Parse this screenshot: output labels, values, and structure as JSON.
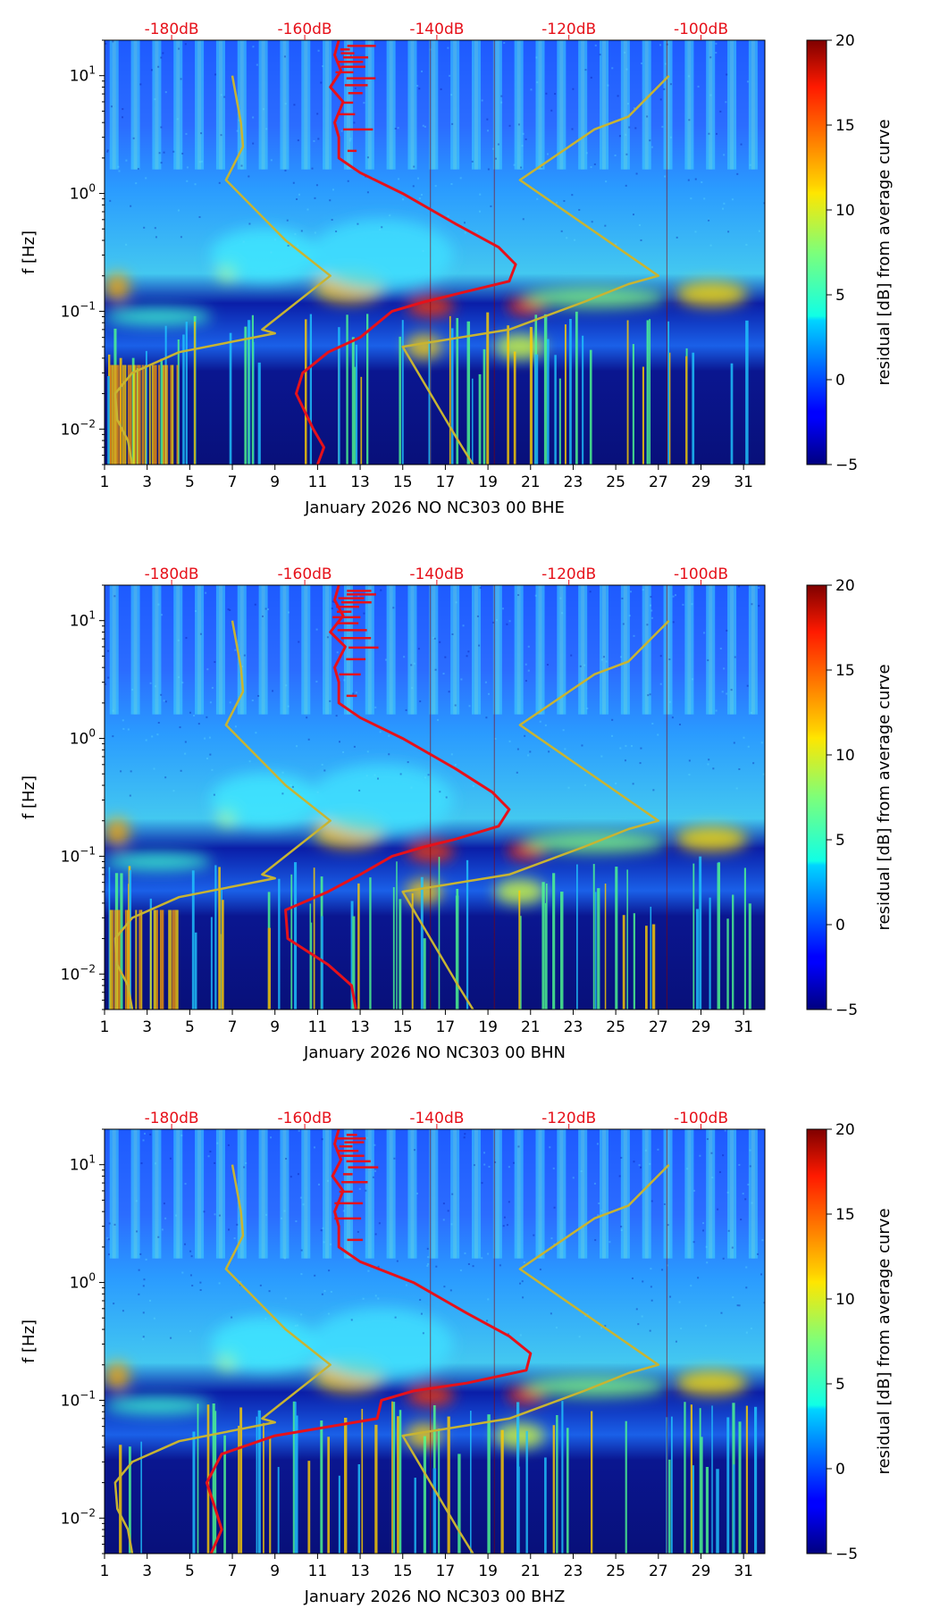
{
  "chart_data": [
    {
      "type": "heatmap",
      "channel": "BHE",
      "xlabel": "January 2026 NO NC303 00 BHE",
      "ylabel": "f [Hz]",
      "x_ticks": [
        "1",
        "3",
        "5",
        "7",
        "9",
        "11",
        "13",
        "15",
        "17",
        "19",
        "21",
        "23",
        "25",
        "27",
        "29",
        "31"
      ],
      "xlim": [
        1,
        32
      ],
      "ylim": [
        0.005,
        20
      ],
      "y_ticks": [
        {
          "base": "10",
          "exp": "1",
          "value": 10
        },
        {
          "base": "10",
          "exp": "0",
          "value": 1
        },
        {
          "base": "10",
          "exp": "−1",
          "value": 0.1
        },
        {
          "base": "10",
          "exp": "−2",
          "value": 0.01
        }
      ],
      "top_axis_labels": [
        "-180dB",
        "-160dB",
        "-140dB",
        "-120dB",
        "-100dB"
      ],
      "colorbar": {
        "label": "residual [dB] from average curve",
        "ticks": [
          "20",
          "15",
          "10",
          "5",
          "0",
          "−5"
        ],
        "min": -5,
        "max": 20
      },
      "series": [
        {
          "name": "model curve 1 (olive)",
          "color": "#c8b432",
          "points": [
            [
              7.0,
              10
            ],
            [
              7.4,
              4
            ],
            [
              7.5,
              2.5
            ],
            [
              6.7,
              1.3
            ],
            [
              9.5,
              0.4
            ],
            [
              11.6,
              0.2
            ],
            [
              8.4,
              0.07
            ],
            [
              9.0,
              0.065
            ],
            [
              4.5,
              0.045
            ],
            [
              2.3,
              0.03
            ],
            [
              1.5,
              0.02
            ],
            [
              1.6,
              0.012
            ],
            [
              2.1,
              0.008
            ],
            [
              2.3,
              0.005
            ]
          ]
        },
        {
          "name": "model curve 2 (olive)",
          "color": "#c8b432",
          "points": [
            [
              27.5,
              10
            ],
            [
              25.6,
              4.5
            ],
            [
              24.0,
              3.5
            ],
            [
              20.5,
              1.3
            ],
            [
              27.0,
              0.2
            ],
            [
              25.6,
              0.17
            ],
            [
              23.5,
              0.12
            ],
            [
              20.0,
              0.07
            ],
            [
              15.0,
              0.05
            ],
            [
              17.6,
              0.008
            ],
            [
              18.3,
              0.005
            ]
          ]
        },
        {
          "name": "average power curve (red)",
          "color": "#e6111a",
          "points": [
            [
              12.0,
              20
            ],
            [
              11.8,
              15
            ],
            [
              12.1,
              11
            ],
            [
              11.6,
              8
            ],
            [
              12.2,
              6
            ],
            [
              11.8,
              4
            ],
            [
              12.0,
              3
            ],
            [
              12.0,
              2
            ],
            [
              13.0,
              1.5
            ],
            [
              15.0,
              1.0
            ],
            [
              17.5,
              0.55
            ],
            [
              19.5,
              0.35
            ],
            [
              20.3,
              0.25
            ],
            [
              20.0,
              0.18
            ],
            [
              17.5,
              0.14
            ],
            [
              16.0,
              0.12
            ],
            [
              14.5,
              0.1
            ],
            [
              13.0,
              0.06
            ],
            [
              11.5,
              0.045
            ],
            [
              10.3,
              0.03
            ],
            [
              10.0,
              0.02
            ],
            [
              10.8,
              0.01
            ],
            [
              11.3,
              0.007
            ],
            [
              11.0,
              0.005
            ]
          ]
        }
      ]
    },
    {
      "type": "heatmap",
      "channel": "BHN",
      "xlabel": "January 2026 NO NC303 00 BHN",
      "ylabel": "f [Hz]",
      "x_ticks": [
        "1",
        "3",
        "5",
        "7",
        "9",
        "11",
        "13",
        "15",
        "17",
        "19",
        "21",
        "23",
        "25",
        "27",
        "29",
        "31"
      ],
      "xlim": [
        1,
        32
      ],
      "ylim": [
        0.005,
        20
      ],
      "y_ticks": [
        {
          "base": "10",
          "exp": "1",
          "value": 10
        },
        {
          "base": "10",
          "exp": "0",
          "value": 1
        },
        {
          "base": "10",
          "exp": "−1",
          "value": 0.1
        },
        {
          "base": "10",
          "exp": "−2",
          "value": 0.01
        }
      ],
      "top_axis_labels": [
        "-180dB",
        "-160dB",
        "-140dB",
        "-120dB",
        "-100dB"
      ],
      "colorbar": {
        "label": "residual [dB] from average curve",
        "ticks": [
          "20",
          "15",
          "10",
          "5",
          "0",
          "−5"
        ],
        "min": -5,
        "max": 20
      },
      "series": [
        {
          "name": "model curve 1 (olive)",
          "color": "#c8b432",
          "points": [
            [
              7.0,
              10
            ],
            [
              7.4,
              4
            ],
            [
              7.5,
              2.5
            ],
            [
              6.7,
              1.3
            ],
            [
              9.5,
              0.4
            ],
            [
              11.6,
              0.2
            ],
            [
              8.4,
              0.07
            ],
            [
              9.0,
              0.065
            ],
            [
              4.5,
              0.045
            ],
            [
              2.3,
              0.03
            ],
            [
              1.5,
              0.02
            ],
            [
              1.6,
              0.012
            ],
            [
              2.1,
              0.008
            ],
            [
              2.3,
              0.005
            ]
          ]
        },
        {
          "name": "model curve 2 (olive)",
          "color": "#c8b432",
          "points": [
            [
              27.5,
              10
            ],
            [
              25.6,
              4.5
            ],
            [
              24.0,
              3.5
            ],
            [
              20.5,
              1.3
            ],
            [
              27.0,
              0.2
            ],
            [
              25.6,
              0.17
            ],
            [
              23.5,
              0.12
            ],
            [
              20.0,
              0.07
            ],
            [
              15.0,
              0.05
            ],
            [
              17.6,
              0.008
            ],
            [
              18.3,
              0.005
            ]
          ]
        },
        {
          "name": "average power curve (red)",
          "color": "#e6111a",
          "points": [
            [
              12.0,
              20
            ],
            [
              11.8,
              15
            ],
            [
              12.2,
              11
            ],
            [
              11.6,
              8
            ],
            [
              12.3,
              6
            ],
            [
              11.8,
              4
            ],
            [
              12.0,
              3
            ],
            [
              12.0,
              2
            ],
            [
              13.0,
              1.5
            ],
            [
              15.0,
              1.0
            ],
            [
              17.5,
              0.55
            ],
            [
              19.2,
              0.35
            ],
            [
              20.0,
              0.25
            ],
            [
              19.5,
              0.18
            ],
            [
              17.5,
              0.14
            ],
            [
              16.0,
              0.12
            ],
            [
              14.5,
              0.1
            ],
            [
              13.0,
              0.07
            ],
            [
              11.5,
              0.05
            ],
            [
              9.5,
              0.035
            ],
            [
              9.6,
              0.02
            ],
            [
              11.5,
              0.012
            ],
            [
              12.6,
              0.008
            ],
            [
              12.8,
              0.005
            ]
          ]
        }
      ]
    },
    {
      "type": "heatmap",
      "channel": "BHZ",
      "xlabel": "January 2026 NO NC303 00 BHZ",
      "ylabel": "f [Hz]",
      "x_ticks": [
        "1",
        "3",
        "5",
        "7",
        "9",
        "11",
        "13",
        "15",
        "17",
        "19",
        "21",
        "23",
        "25",
        "27",
        "29",
        "31"
      ],
      "xlim": [
        1,
        32
      ],
      "ylim": [
        0.005,
        20
      ],
      "y_ticks": [
        {
          "base": "10",
          "exp": "1",
          "value": 10
        },
        {
          "base": "10",
          "exp": "0",
          "value": 1
        },
        {
          "base": "10",
          "exp": "−1",
          "value": 0.1
        },
        {
          "base": "10",
          "exp": "−2",
          "value": 0.01
        }
      ],
      "top_axis_labels": [
        "-180dB",
        "-160dB",
        "-140dB",
        "-120dB",
        "-100dB"
      ],
      "colorbar": {
        "label": "residual [dB] from average curve",
        "ticks": [
          "20",
          "15",
          "10",
          "5",
          "0",
          "−5"
        ],
        "min": -5,
        "max": 20
      },
      "series": [
        {
          "name": "model curve 1 (olive)",
          "color": "#c8b432",
          "points": [
            [
              7.0,
              10
            ],
            [
              7.4,
              4
            ],
            [
              7.5,
              2.5
            ],
            [
              6.7,
              1.3
            ],
            [
              9.5,
              0.4
            ],
            [
              11.6,
              0.2
            ],
            [
              8.4,
              0.07
            ],
            [
              9.0,
              0.065
            ],
            [
              4.5,
              0.045
            ],
            [
              2.3,
              0.03
            ],
            [
              1.5,
              0.02
            ],
            [
              1.6,
              0.012
            ],
            [
              2.1,
              0.008
            ],
            [
              2.3,
              0.005
            ]
          ]
        },
        {
          "name": "model curve 2 (olive)",
          "color": "#c8b432",
          "points": [
            [
              27.5,
              10
            ],
            [
              25.6,
              4.5
            ],
            [
              24.0,
              3.5
            ],
            [
              20.5,
              1.3
            ],
            [
              27.0,
              0.2
            ],
            [
              25.6,
              0.17
            ],
            [
              23.5,
              0.12
            ],
            [
              20.0,
              0.07
            ],
            [
              15.0,
              0.05
            ],
            [
              17.6,
              0.008
            ],
            [
              18.3,
              0.005
            ]
          ]
        },
        {
          "name": "average power curve (red)",
          "color": "#e6111a",
          "points": [
            [
              12.0,
              20
            ],
            [
              11.8,
              15
            ],
            [
              12.1,
              11
            ],
            [
              11.7,
              8
            ],
            [
              12.2,
              6
            ],
            [
              11.8,
              4
            ],
            [
              12.0,
              3
            ],
            [
              12.0,
              2
            ],
            [
              13.0,
              1.5
            ],
            [
              15.5,
              1.0
            ],
            [
              18.0,
              0.55
            ],
            [
              20.0,
              0.35
            ],
            [
              21.0,
              0.25
            ],
            [
              20.8,
              0.18
            ],
            [
              18.0,
              0.14
            ],
            [
              15.5,
              0.12
            ],
            [
              14.0,
              0.1
            ],
            [
              13.8,
              0.07
            ],
            [
              9.0,
              0.05
            ],
            [
              6.5,
              0.035
            ],
            [
              5.8,
              0.02
            ],
            [
              6.2,
              0.012
            ],
            [
              6.5,
              0.008
            ],
            [
              6.0,
              0.005
            ]
          ]
        }
      ]
    }
  ]
}
